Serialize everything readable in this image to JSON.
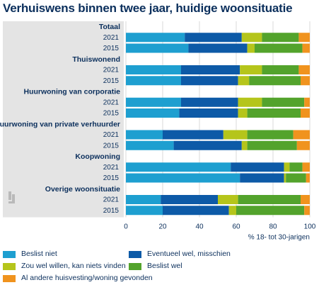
{
  "chart_data": {
    "type": "bar",
    "stacked": true,
    "orientation": "horizontal",
    "title": "Verhuiswens binnen twee jaar, huidige woonsituatie",
    "xlabel": "% 18- tot 30-jarigen",
    "xlim": [
      0,
      100
    ],
    "xticks": [
      0,
      20,
      40,
      60,
      80,
      100
    ],
    "legend_position": "bottom",
    "series": [
      {
        "name": "Beslist niet",
        "color": "#1e9fd0"
      },
      {
        "name": "Eventueel wel, misschien",
        "color": "#0d5aa7"
      },
      {
        "name": "Zou wel willen, kan niets vinden",
        "color": "#b5c51b"
      },
      {
        "name": "Beslist wel",
        "color": "#53a32c"
      },
      {
        "name": "Al andere huisvesting/woning gevonden",
        "color": "#f0931e"
      }
    ],
    "groups": [
      {
        "name": "Totaal",
        "rows": [
          {
            "year": "2021",
            "values": [
              32,
              31,
              11,
              20,
              6
            ]
          },
          {
            "year": "2015",
            "values": [
              34,
              32,
              4,
              26,
              4
            ]
          }
        ]
      },
      {
        "name": "Thuiswonend",
        "rows": [
          {
            "year": "2021",
            "values": [
              30,
              32,
              12,
              20,
              6
            ]
          },
          {
            "year": "2015",
            "values": [
              30,
              31,
              6,
              28,
              5
            ]
          }
        ]
      },
      {
        "name": "Huurwoning van corporatie",
        "rows": [
          {
            "year": "2021",
            "values": [
              30,
              31,
              13,
              23,
              3
            ]
          },
          {
            "year": "2015",
            "values": [
              29,
              32,
              5,
              29,
              5
            ]
          }
        ]
      },
      {
        "name": "Huurwoning van private verhuurder",
        "rows": [
          {
            "year": "2021",
            "values": [
              20,
              33,
              13,
              25,
              9
            ]
          },
          {
            "year": "2015",
            "values": [
              26,
              37,
              3,
              27,
              7
            ]
          }
        ]
      },
      {
        "name": "Koopwoning",
        "rows": [
          {
            "year": "2021",
            "values": [
              57,
              29,
              3,
              7,
              4
            ]
          },
          {
            "year": "2015",
            "values": [
              62,
              24,
              1,
              11,
              2
            ]
          }
        ]
      },
      {
        "name": "Overige woonsituatie",
        "rows": [
          {
            "year": "2021",
            "values": [
              19,
              31,
              11,
              34,
              5
            ]
          },
          {
            "year": "2015",
            "values": [
              20,
              36,
              4,
              37,
              3
            ]
          }
        ]
      }
    ]
  }
}
